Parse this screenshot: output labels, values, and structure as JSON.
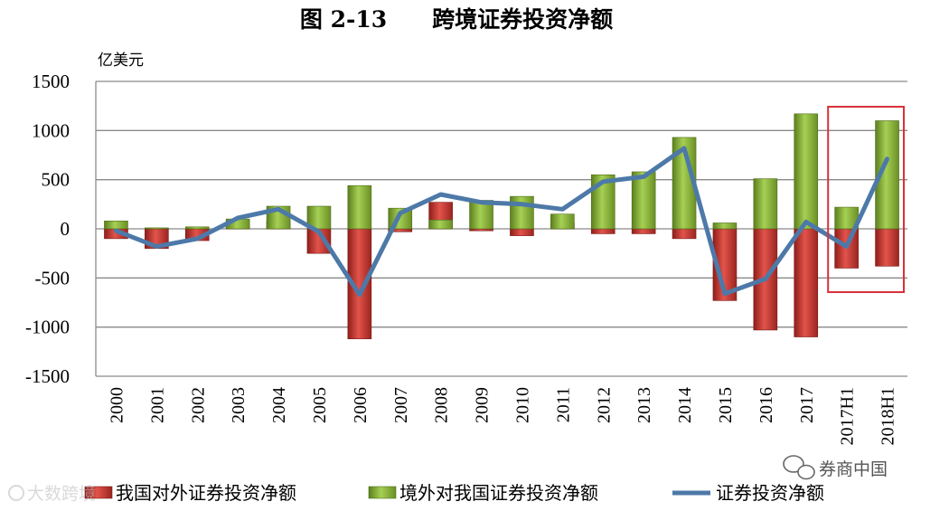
{
  "chart_data": {
    "type": "bar",
    "title": "图 2-13　　跨境证券投资净额",
    "ylabel": "亿美元",
    "xlabel": "",
    "ylim": [
      -1500,
      1500
    ],
    "yticks": [
      1500,
      1000,
      500,
      0,
      -500,
      -1000,
      -1500
    ],
    "categories": [
      "2000",
      "2001",
      "2002",
      "2003",
      "2004",
      "2005",
      "2006",
      "2007",
      "2008",
      "2009",
      "2010",
      "2011",
      "2012",
      "2013",
      "2014",
      "2015",
      "2016",
      "2017",
      "2017H1",
      "2018H1"
    ],
    "series": [
      {
        "name": "我国对外证券投资净额",
        "kind": "bar",
        "color": "#c0302b",
        "values": [
          -100,
          -200,
          -120,
          30,
          80,
          -250,
          -1120,
          -30,
          270,
          -20,
          -70,
          60,
          -50,
          -50,
          -100,
          -730,
          -1030,
          -1100,
          -400,
          -380
        ]
      },
      {
        "name": "境外对我国证券投资净额",
        "kind": "bar",
        "color": "#86b33a",
        "values": [
          80,
          10,
          20,
          100,
          230,
          230,
          440,
          210,
          90,
          290,
          330,
          150,
          550,
          580,
          930,
          60,
          510,
          1170,
          220,
          1100
        ]
      },
      {
        "name": "证券投资净额",
        "kind": "line",
        "color": "#4d79a8",
        "values": [
          -20,
          -180,
          -100,
          110,
          200,
          -30,
          -670,
          160,
          350,
          270,
          250,
          200,
          480,
          530,
          820,
          -660,
          -510,
          70,
          -180,
          710
        ]
      }
    ],
    "highlight": {
      "from": "2017H1",
      "to": "2018H1",
      "color": "#d9313a"
    },
    "grid": true,
    "legend": "bottom"
  },
  "watermarks": {
    "left": "大数跨境",
    "right": "券商中国"
  }
}
